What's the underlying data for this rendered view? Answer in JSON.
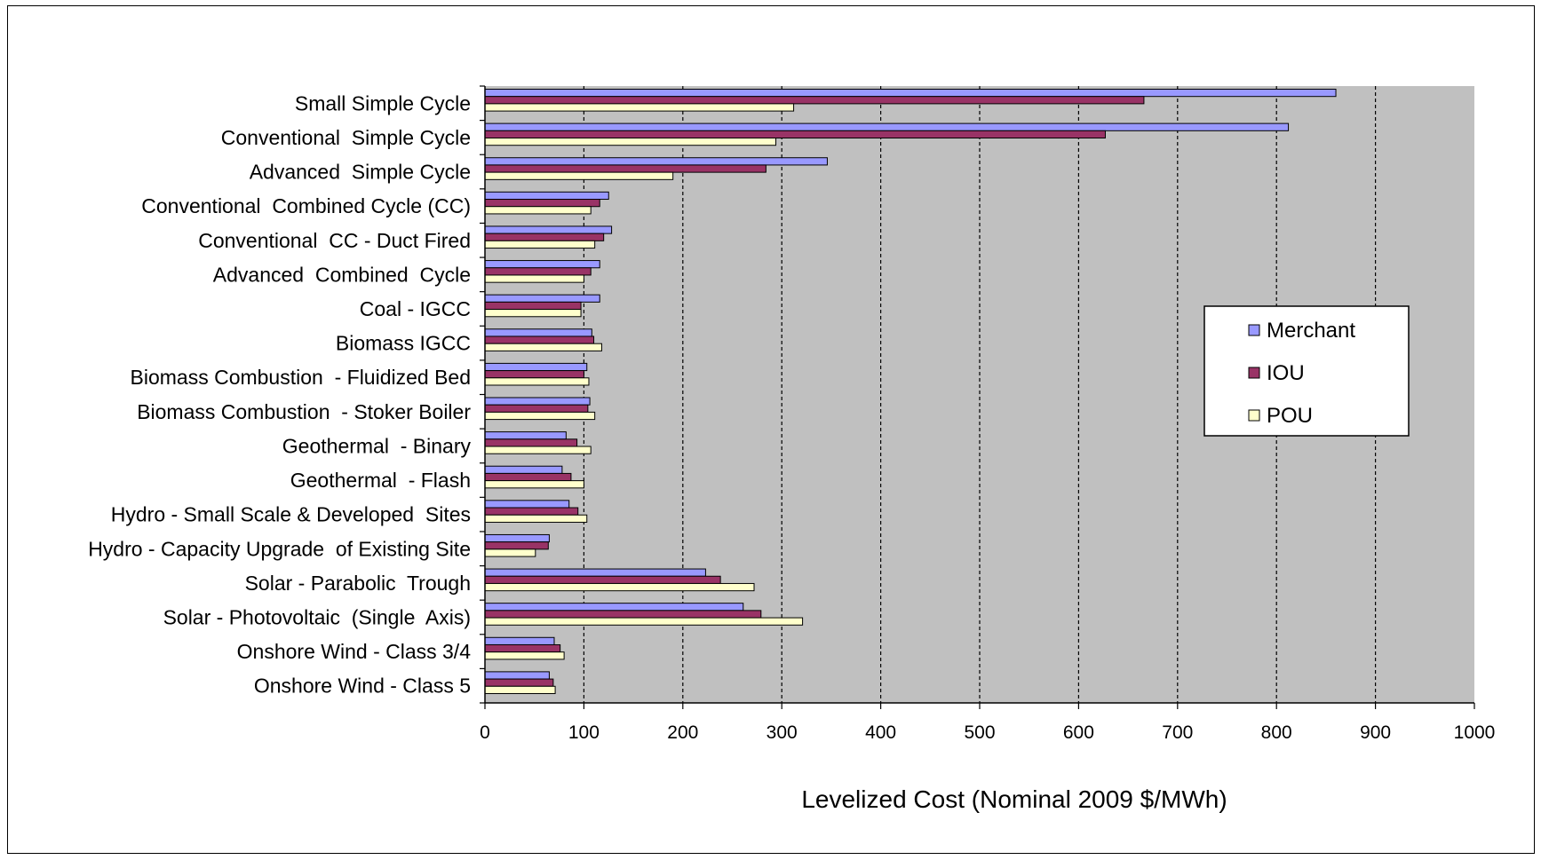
{
  "chart_data": {
    "type": "bar",
    "orientation": "horizontal",
    "categories": [
      "Small Simple Cycle",
      "Conventional  Simple Cycle",
      "Advanced  Simple Cycle",
      "Conventional  Combined Cycle (CC)",
      "Conventional  CC - Duct Fired",
      "Advanced  Combined  Cycle",
      "Coal - IGCC",
      "Biomass IGCC",
      "Biomass Combustion  - Fluidized Bed",
      "Biomass Combustion  - Stoker Boiler",
      "Geothermal  - Binary",
      "Geothermal  - Flash",
      "Hydro - Small Scale & Developed  Sites",
      "Hydro - Capacity Upgrade  of Existing Site",
      "Solar - Parabolic  Trough",
      "Solar - Photovoltaic  (Single  Axis)",
      "Onshore Wind - Class 3/4",
      "Onshore Wind - Class 5"
    ],
    "series": [
      {
        "name": "Merchant",
        "color": "#9999ff",
        "values": [
          860,
          812,
          346,
          125,
          128,
          116,
          116,
          108,
          103,
          106,
          82,
          78,
          85,
          65,
          223,
          261,
          70,
          65
        ]
      },
      {
        "name": "IOU",
        "color": "#993366",
        "values": [
          666,
          627,
          284,
          116,
          120,
          107,
          97,
          110,
          100,
          104,
          93,
          87,
          94,
          64,
          238,
          279,
          76,
          69
        ]
      },
      {
        "name": "POU",
        "color": "#ffffcc",
        "values": [
          312,
          294,
          190,
          107,
          111,
          100,
          97,
          118,
          105,
          111,
          107,
          100,
          103,
          51,
          272,
          321,
          80,
          71
        ]
      }
    ],
    "xlabel": "Levelized Cost (Nominal  2009 $/MWh)",
    "xlim": [
      0,
      1000
    ],
    "xticks": [
      0,
      100,
      200,
      300,
      400,
      500,
      600,
      700,
      800,
      900,
      1000
    ],
    "xtick_labels": [
      "0",
      "100",
      "200",
      "300",
      "400",
      "500",
      "600",
      "700",
      "800",
      "900",
      "1000"
    ],
    "grid": "vertical dashed",
    "plot_background": "#c0c0c0",
    "legend": {
      "position": "right",
      "entries": [
        "Merchant",
        "IOU",
        "POU"
      ]
    }
  }
}
